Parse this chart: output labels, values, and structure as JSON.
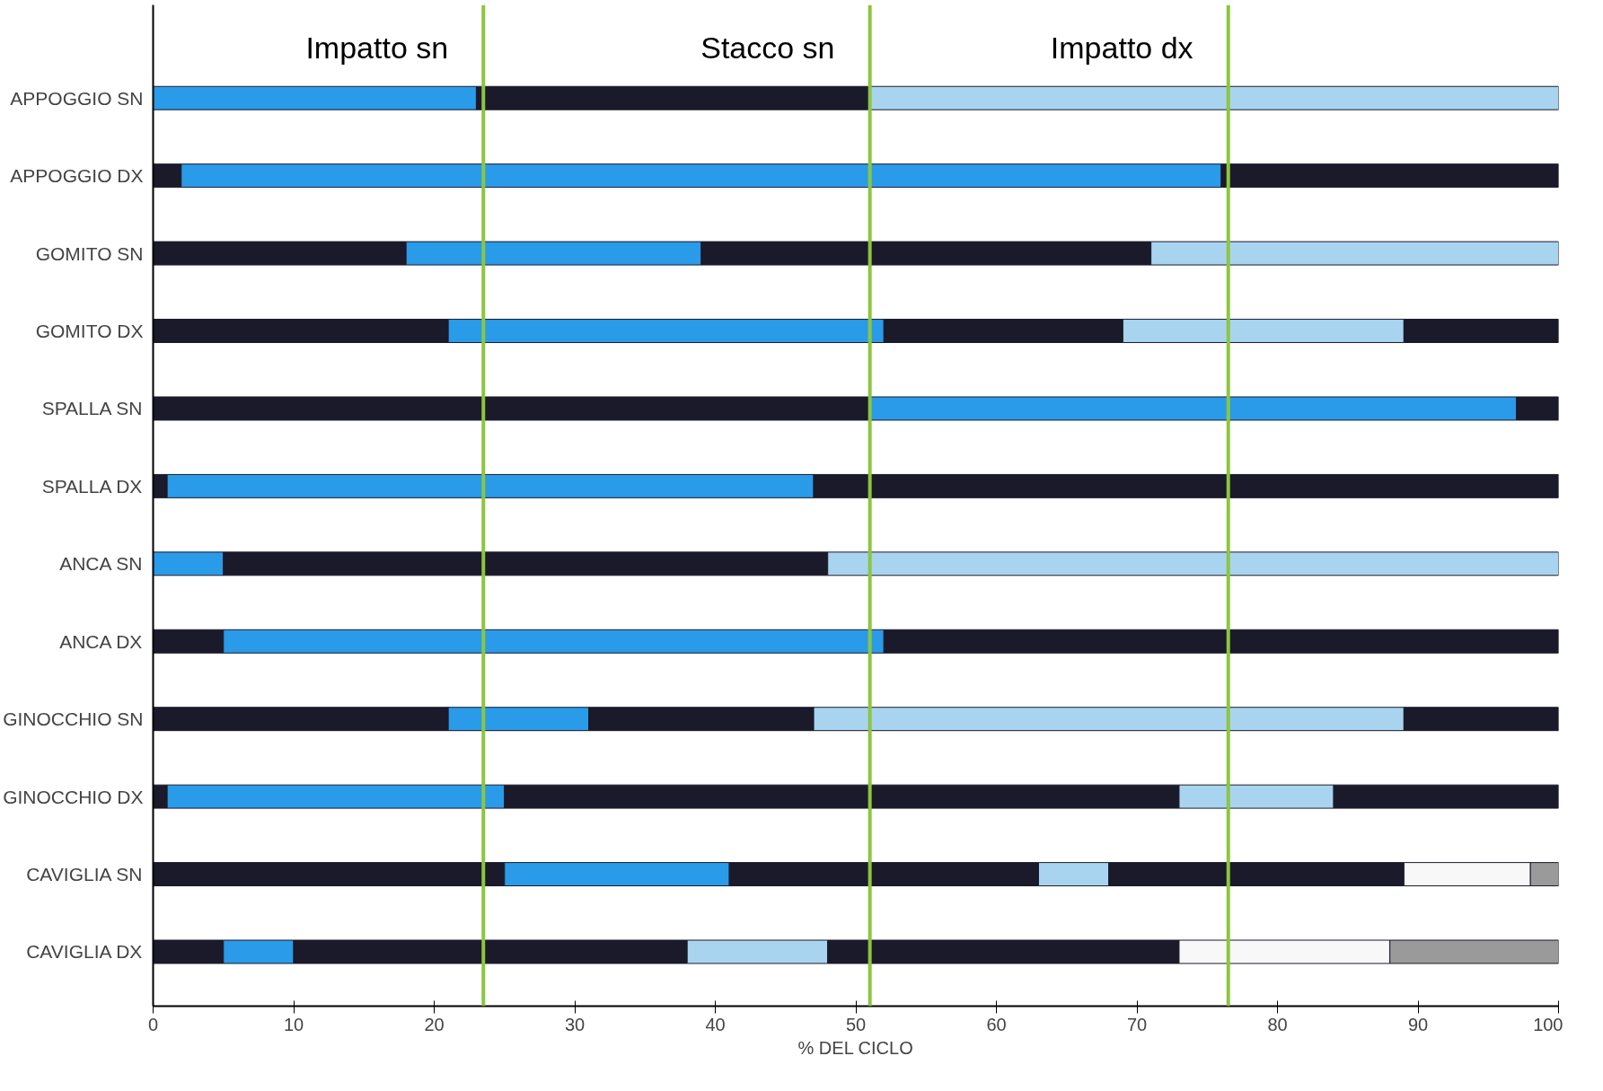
{
  "chart_data": {
    "type": "bar",
    "orientation": "horizontal",
    "stacked": true,
    "xlabel": "% DEL CICLO",
    "categories": [
      "APPOGGIO SN",
      "APPOGGIO DX",
      "GOMITO SN",
      "GOMITO DX",
      "SPALLA SN",
      "SPALLA DX",
      "ANCA SN",
      "ANCA DX",
      "GINOCCHIO SN",
      "GINOCCHIO DX",
      "CAVIGLIA SN",
      "CAVIGLIA DX"
    ],
    "series": [
      {
        "values": [
          23,
          2,
          18,
          21,
          51,
          1,
          5,
          5,
          21,
          1,
          25,
          5
        ],
        "colors": [
          "#2a9be8",
          "#1a1a2a",
          "#1a1a2a",
          "#1a1a2a",
          "#1a1a2a",
          "#1a1a2a",
          "#2a9be8",
          "#1a1a2a",
          "#1a1a2a",
          "#1a1a2a",
          "#1a1a2a",
          "#1a1a2a"
        ]
      },
      {
        "values": [
          28,
          74,
          21,
          31,
          46,
          46,
          43,
          47,
          10,
          24,
          16,
          5
        ],
        "colors": [
          "#1a1a2a",
          "#2a9be8",
          "#2a9be8",
          "#2a9be8",
          "#2a9be8",
          "#2a9be8",
          "#1a1a2a",
          "#2a9be8",
          "#2a9be8",
          "#2a9be8",
          "#2a9be8",
          "#2a9be8"
        ]
      },
      {
        "values": [
          49,
          24,
          32,
          17,
          3,
          53,
          52,
          48,
          16,
          48,
          22,
          28
        ],
        "colors": [
          "#a9d4f0",
          "#1a1a2a",
          "#1a1a2a",
          "#1a1a2a",
          "#1a1a2a",
          "#1a1a2a",
          "#a9d4f0",
          "#1a1a2a",
          "#1a1a2a",
          "#1a1a2a",
          "#1a1a2a",
          "#1a1a2a"
        ]
      },
      {
        "values": [
          null,
          null,
          29,
          20,
          null,
          null,
          null,
          null,
          42,
          11,
          5,
          10
        ],
        "colors": [
          null,
          null,
          "#a9d4f0",
          "#a9d4f0",
          null,
          null,
          null,
          null,
          "#a9d4f0",
          "#a9d4f0",
          "#a9d4f0",
          "#a9d4f0"
        ]
      },
      {
        "values": [
          null,
          null,
          null,
          11,
          null,
          null,
          null,
          null,
          11,
          16,
          21,
          25
        ],
        "colors": [
          null,
          null,
          null,
          "#1a1a2a",
          null,
          null,
          null,
          null,
          "#1a1a2a",
          "#1a1a2a",
          "#1a1a2a",
          "#1a1a2a"
        ]
      },
      {
        "values": [
          null,
          null,
          null,
          null,
          null,
          null,
          null,
          null,
          null,
          null,
          9,
          15
        ],
        "colors": [
          null,
          null,
          null,
          null,
          null,
          null,
          null,
          null,
          null,
          null,
          "#f8f8f8",
          "#f8f8f8"
        ]
      },
      {
        "values": [
          null,
          null,
          null,
          null,
          null,
          null,
          null,
          null,
          null,
          null,
          2,
          12
        ],
        "colors": [
          null,
          null,
          null,
          null,
          null,
          null,
          null,
          null,
          null,
          null,
          "#9a9a9a",
          "#9a9a9a"
        ]
      }
    ],
    "xlim": [
      0,
      100
    ],
    "xticks": [
      0,
      10,
      20,
      30,
      40,
      50,
      60,
      70,
      80,
      90,
      100
    ],
    "ref_lines": [
      {
        "axis": "x",
        "value": 23.5,
        "label": "Impatto sn",
        "color": "#8cc63f"
      },
      {
        "axis": "x",
        "value": 51,
        "label": "Stacco sn",
        "color": "#8cc63f"
      },
      {
        "axis": "x",
        "value": 76.5,
        "label": "Impatto dx",
        "color": "#8cc63f"
      }
    ],
    "grid": false
  }
}
